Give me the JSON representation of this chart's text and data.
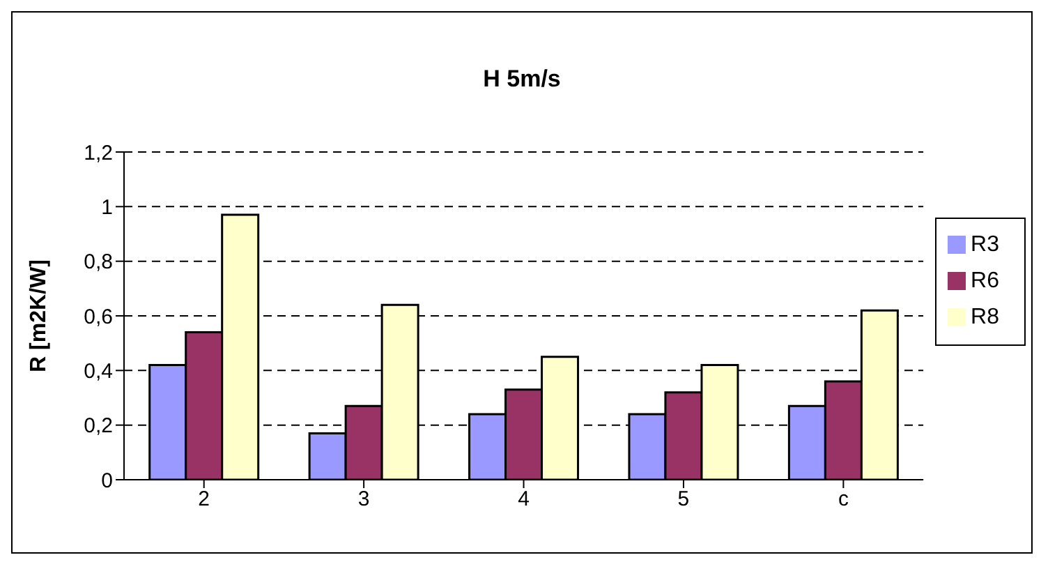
{
  "chart_data": {
    "type": "bar",
    "title": "H 5m/s",
    "ylabel": "R [m2K/W]",
    "categories": [
      "2",
      "3",
      "4",
      "5",
      "c"
    ],
    "series": [
      {
        "name": "R3",
        "color": "#9999ff",
        "values": [
          0.42,
          0.17,
          0.24,
          0.24,
          0.27
        ]
      },
      {
        "name": "R6",
        "color": "#993366",
        "values": [
          0.54,
          0.27,
          0.33,
          0.32,
          0.36
        ]
      },
      {
        "name": "R8",
        "color": "#ffffcc",
        "values": [
          0.97,
          0.64,
          0.45,
          0.42,
          0.62
        ]
      }
    ],
    "ylim": [
      0,
      1.2
    ],
    "yticks": [
      0,
      {
        "value": 0.2,
        "label": "0,2"
      },
      {
        "value": 0.4,
        "label": "0,4"
      },
      {
        "value": 0.6,
        "label": "0,6"
      },
      {
        "value": 0.8,
        "label": "0,8"
      },
      1,
      {
        "value": 1.2,
        "label": "1,2"
      }
    ],
    "grid": "y",
    "legend": "right"
  }
}
